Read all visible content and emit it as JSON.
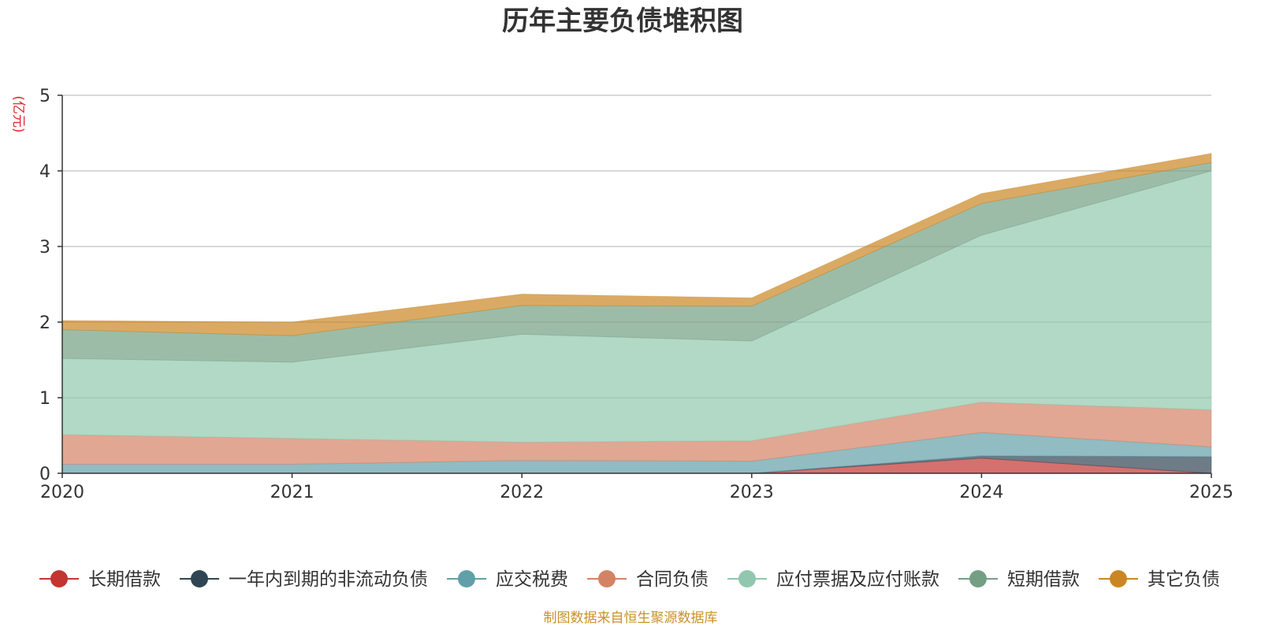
{
  "chart_data": {
    "type": "area",
    "stacked": true,
    "title": "历年主要负债堆积图",
    "unit_label": "(亿元)",
    "x": [
      "2020",
      "2021",
      "2022",
      "2023",
      "2024",
      "2025"
    ],
    "ylim": [
      0,
      5
    ],
    "yticks": [
      "0",
      "1",
      "2",
      "3",
      "4",
      "5"
    ],
    "grid": true,
    "legend_position": "bottom",
    "series": [
      {
        "name": "长期借款",
        "color": "#c23531",
        "values": [
          0,
          0,
          0,
          0,
          0.2,
          0
        ]
      },
      {
        "name": "一年内到期的非流动负债",
        "color": "#2f4554",
        "values": [
          0,
          0,
          0,
          0,
          0.03,
          0.22
        ]
      },
      {
        "name": "应交税费",
        "color": "#61a0a8",
        "values": [
          0.12,
          0.12,
          0.17,
          0.16,
          0.31,
          0.13
        ]
      },
      {
        "name": "合同负债",
        "color": "#d48265",
        "values": [
          0.39,
          0.34,
          0.24,
          0.27,
          0.4,
          0.49
        ]
      },
      {
        "name": "应付票据及应付账款",
        "color": "#91c7ae",
        "values": [
          1.01,
          1.01,
          1.43,
          1.32,
          2.21,
          3.16
        ]
      },
      {
        "name": "短期借款",
        "color": "#749f83",
        "values": [
          0.38,
          0.35,
          0.38,
          0.46,
          0.42,
          0.11
        ]
      },
      {
        "name": "其它负债",
        "color": "#ca8622",
        "values": [
          0.12,
          0.18,
          0.15,
          0.11,
          0.13,
          0.12
        ]
      }
    ],
    "source_note": "制图数据来自恒生聚源数据库"
  }
}
